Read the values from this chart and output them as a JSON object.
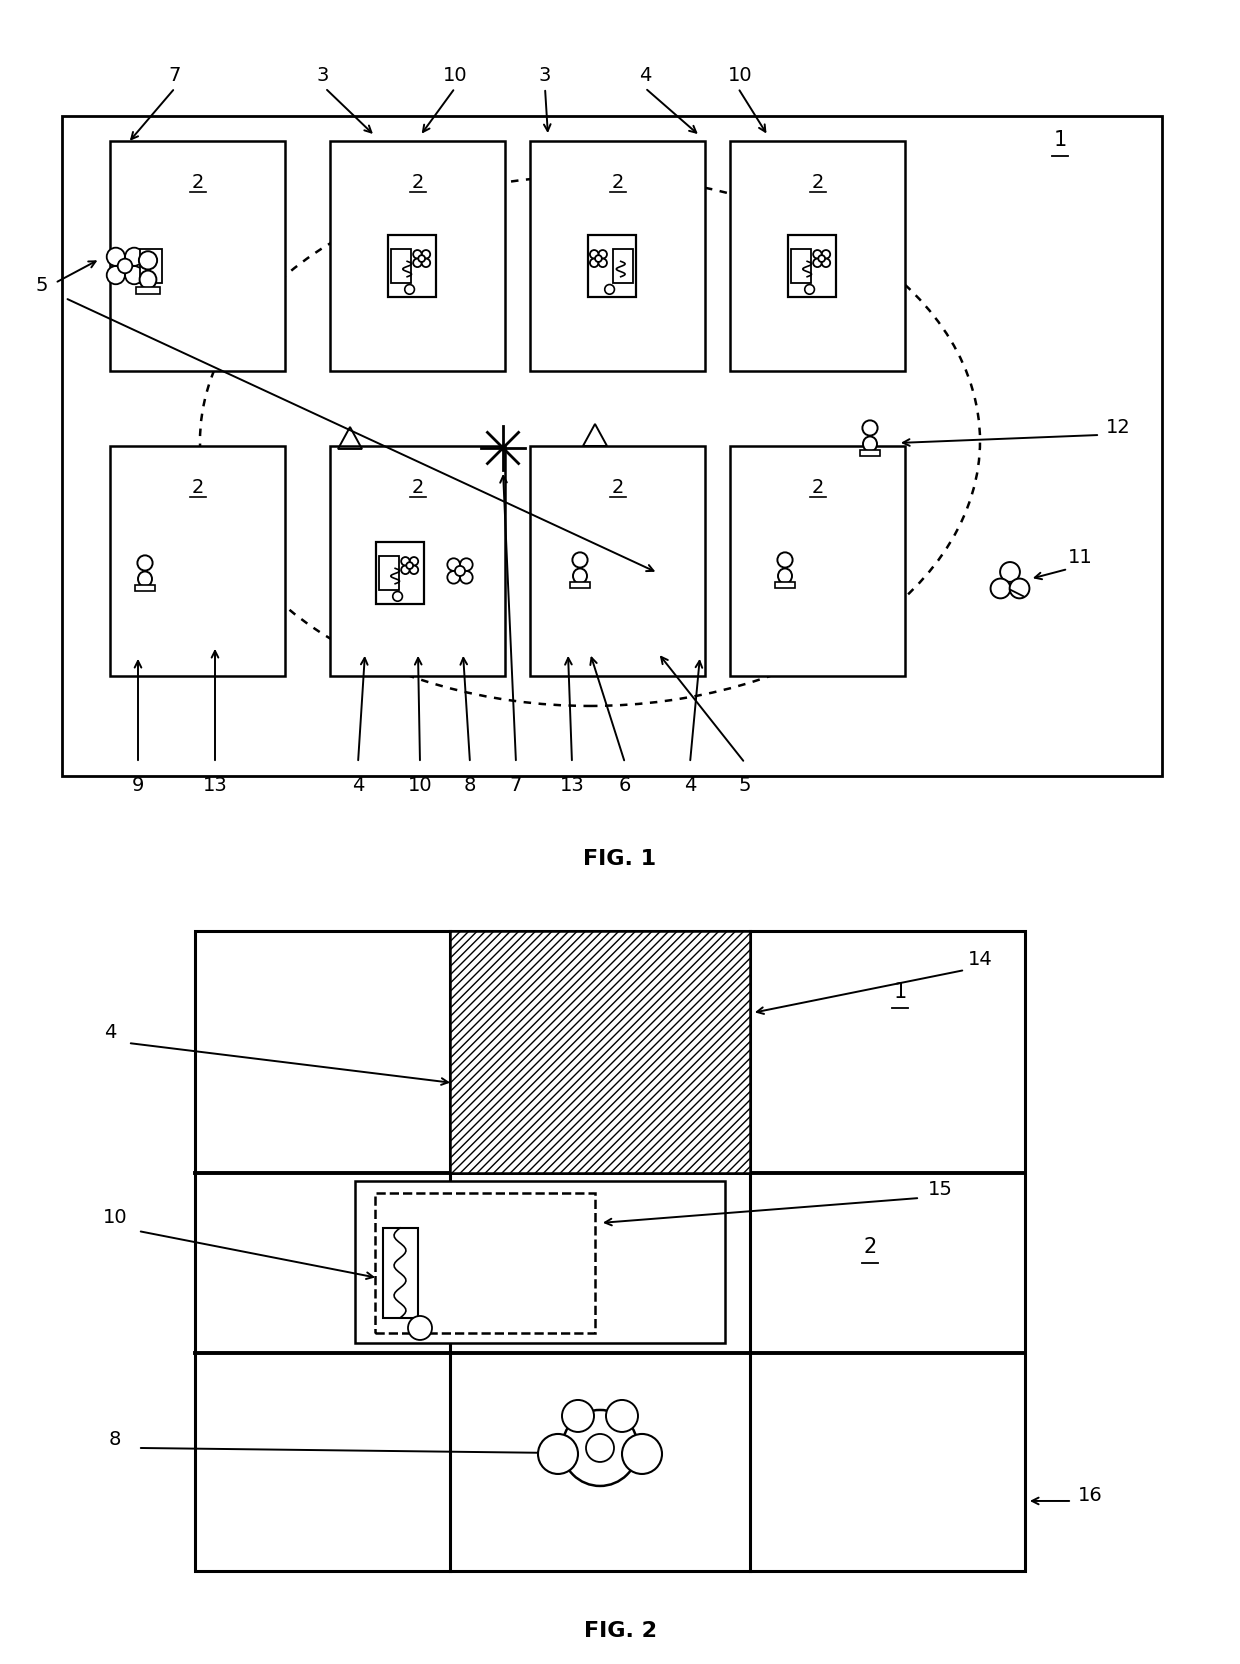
{
  "background": "#ffffff",
  "fig1_title": "FIG. 1",
  "fig2_title": "FIG. 2",
  "label_fontsize": 14,
  "fig_title_fontsize": 16
}
